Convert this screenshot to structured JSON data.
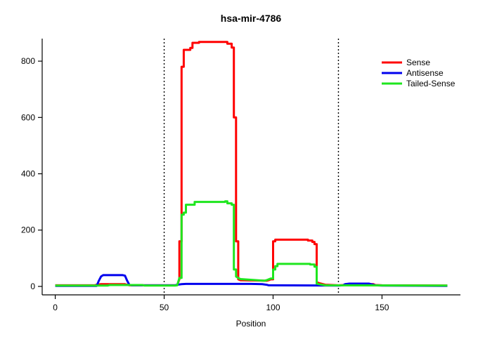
{
  "chart_data": {
    "type": "line",
    "title": "hsa-mir-4786",
    "xlabel": "Position",
    "ylabel": "",
    "xlim": [
      -6,
      186
    ],
    "ylim": [
      -30,
      880
    ],
    "xticks": [
      0,
      50,
      100,
      150
    ],
    "yticks": [
      0,
      200,
      400,
      600,
      800
    ],
    "vlines": [
      50,
      130
    ],
    "grid": false,
    "legend": {
      "position": "top-right",
      "entries": [
        {
          "label": "Sense",
          "color": "#ff0000"
        },
        {
          "label": "Antisense",
          "color": "#0000ee"
        },
        {
          "label": "Tailed-Sense",
          "color": "#1ee61e"
        }
      ]
    },
    "series": [
      {
        "name": "Sense",
        "color": "#ff0000",
        "points": [
          [
            0,
            4
          ],
          [
            18,
            4
          ],
          [
            19,
            6
          ],
          [
            21,
            8
          ],
          [
            32,
            8
          ],
          [
            33,
            6
          ],
          [
            34,
            4
          ],
          [
            55,
            4
          ],
          [
            56,
            5
          ],
          [
            57,
            25
          ],
          [
            57,
            160
          ],
          [
            58,
            160
          ],
          [
            58,
            780
          ],
          [
            59,
            780
          ],
          [
            59,
            840
          ],
          [
            62,
            840
          ],
          [
            62,
            847
          ],
          [
            63,
            847
          ],
          [
            63,
            865
          ],
          [
            66,
            865
          ],
          [
            66,
            868
          ],
          [
            79,
            868
          ],
          [
            79,
            862
          ],
          [
            81,
            862
          ],
          [
            81,
            848
          ],
          [
            82,
            848
          ],
          [
            82,
            600
          ],
          [
            83,
            600
          ],
          [
            83,
            160
          ],
          [
            84,
            160
          ],
          [
            84,
            25
          ],
          [
            85,
            22
          ],
          [
            97,
            20
          ],
          [
            98,
            22
          ],
          [
            99,
            25
          ],
          [
            100,
            25
          ],
          [
            100,
            160
          ],
          [
            101,
            160
          ],
          [
            101,
            166
          ],
          [
            116,
            166
          ],
          [
            116,
            163
          ],
          [
            118,
            163
          ],
          [
            118,
            158
          ],
          [
            119,
            158
          ],
          [
            119,
            150
          ],
          [
            120,
            150
          ],
          [
            120,
            15
          ],
          [
            121,
            12
          ],
          [
            124,
            6
          ],
          [
            130,
            4
          ],
          [
            136,
            6
          ],
          [
            138,
            8
          ],
          [
            146,
            8
          ],
          [
            147,
            5
          ],
          [
            150,
            4
          ],
          [
            180,
            3
          ]
        ]
      },
      {
        "name": "Antisense",
        "color": "#0000ee",
        "points": [
          [
            0,
            2
          ],
          [
            19,
            2
          ],
          [
            20,
            20
          ],
          [
            21,
            35
          ],
          [
            22,
            40
          ],
          [
            31,
            40
          ],
          [
            32,
            38
          ],
          [
            33,
            20
          ],
          [
            34,
            6
          ],
          [
            35,
            4
          ],
          [
            55,
            4
          ],
          [
            56,
            6
          ],
          [
            58,
            8
          ],
          [
            60,
            9
          ],
          [
            90,
            9
          ],
          [
            95,
            8
          ],
          [
            97,
            6
          ],
          [
            98,
            4
          ],
          [
            130,
            3
          ],
          [
            132,
            4
          ],
          [
            133,
            8
          ],
          [
            135,
            10
          ],
          [
            144,
            10
          ],
          [
            145,
            8
          ],
          [
            146,
            6
          ],
          [
            147,
            4
          ],
          [
            150,
            3
          ],
          [
            180,
            2
          ]
        ]
      },
      {
        "name": "Tailed-Sense",
        "color": "#1ee61e",
        "points": [
          [
            0,
            3
          ],
          [
            24,
            3
          ],
          [
            25,
            5
          ],
          [
            40,
            5
          ],
          [
            41,
            3
          ],
          [
            55,
            3
          ],
          [
            56,
            4
          ],
          [
            57,
            30
          ],
          [
            58,
            30
          ],
          [
            58,
            255
          ],
          [
            59,
            255
          ],
          [
            59,
            262
          ],
          [
            60,
            262
          ],
          [
            60,
            290
          ],
          [
            64,
            290
          ],
          [
            64,
            300
          ],
          [
            78,
            300
          ],
          [
            78,
            302
          ],
          [
            79,
            302
          ],
          [
            79,
            295
          ],
          [
            81,
            295
          ],
          [
            81,
            290
          ],
          [
            82,
            290
          ],
          [
            82,
            60
          ],
          [
            83,
            60
          ],
          [
            83,
            35
          ],
          [
            84,
            30
          ],
          [
            85,
            26
          ],
          [
            96,
            20
          ],
          [
            97,
            22
          ],
          [
            99,
            28
          ],
          [
            100,
            28
          ],
          [
            100,
            60
          ],
          [
            101,
            60
          ],
          [
            101,
            72
          ],
          [
            102,
            72
          ],
          [
            102,
            80
          ],
          [
            117,
            80
          ],
          [
            117,
            78
          ],
          [
            119,
            78
          ],
          [
            119,
            70
          ],
          [
            120,
            70
          ],
          [
            120,
            10
          ],
          [
            121,
            8
          ],
          [
            124,
            4
          ],
          [
            180,
            3
          ]
        ]
      }
    ]
  }
}
